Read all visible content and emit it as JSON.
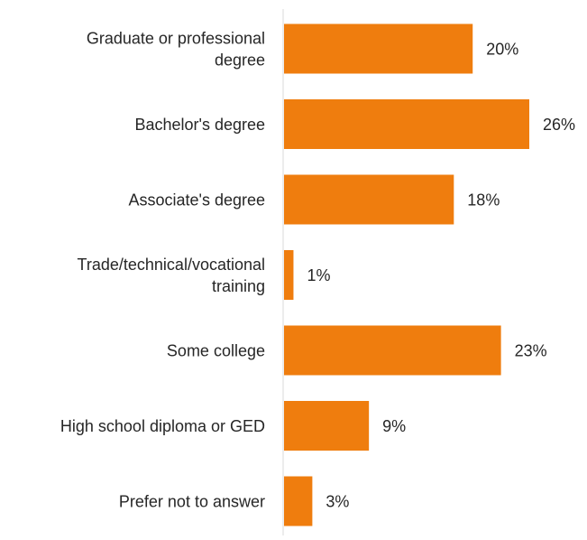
{
  "chart_data": {
    "type": "bar",
    "orientation": "horizontal",
    "categories": [
      [
        "Graduate or professional",
        "degree"
      ],
      [
        "Bachelor's degree"
      ],
      [
        "Associate's degree"
      ],
      [
        "Trade/technical/vocational",
        "training"
      ],
      [
        "Some college"
      ],
      [
        "High school diploma or GED"
      ],
      [
        "Prefer not to answer"
      ]
    ],
    "values": [
      20,
      26,
      18,
      1,
      23,
      9,
      3
    ],
    "value_labels": [
      "20%",
      "26%",
      "18%",
      "1%",
      "23%",
      "9%",
      "3%"
    ],
    "xlim": [
      0,
      26
    ],
    "grid": false,
    "legend": "none",
    "bar_color": "#EF7D0E",
    "axis_color": "#D9D9D9",
    "text_color": "#262626"
  }
}
